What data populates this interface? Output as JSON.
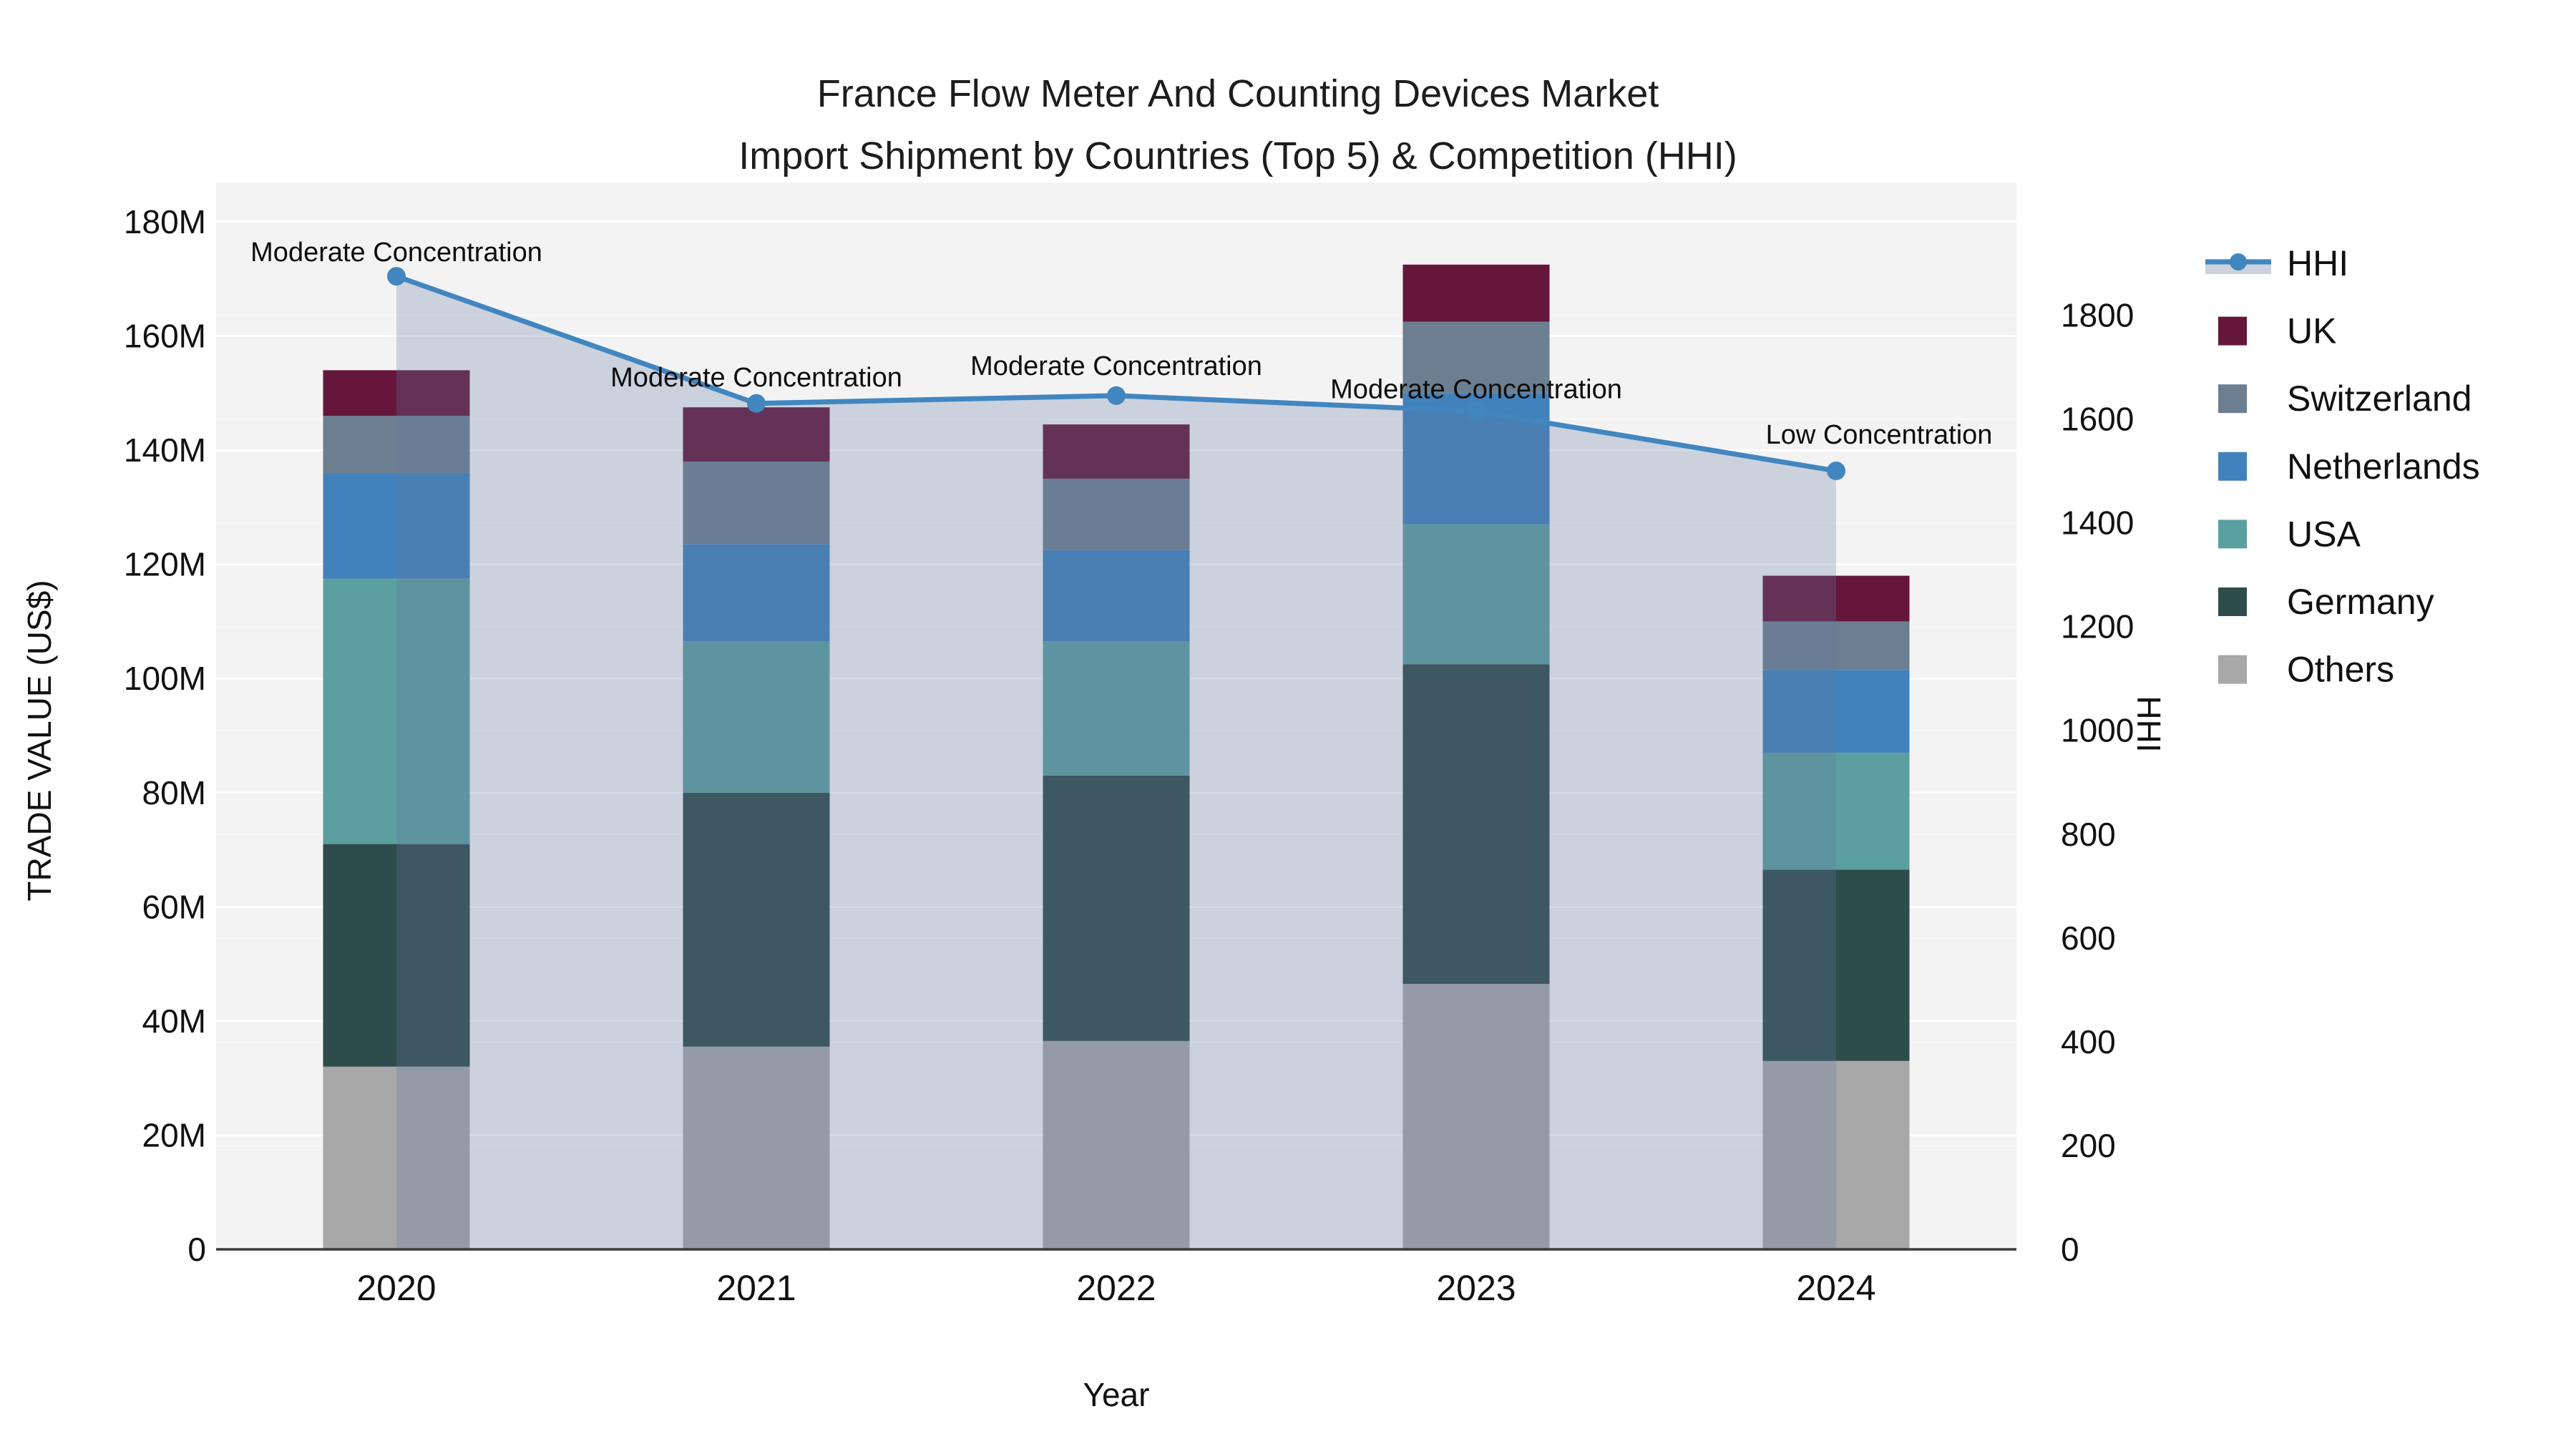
{
  "chart_data": {
    "type": "bar+line",
    "title_line1": "France Flow Meter And Counting Devices Market",
    "title_line2": "Import Shipment by Countries (Top 5) & Competition (HHI)",
    "xlabel": "Year",
    "ylabel_left": "TRADE VALUE (US$)",
    "ylabel_right": "HHI",
    "categories": [
      "2020",
      "2021",
      "2022",
      "2023",
      "2024"
    ],
    "bar_unit": "M US$",
    "series": [
      {
        "name": "Others",
        "color": "#A8A8A8",
        "values": [
          32,
          35.5,
          36.5,
          46.5,
          33
        ]
      },
      {
        "name": "Germany",
        "color": "#2E4C4A",
        "values": [
          39,
          44.5,
          46.5,
          56,
          33.5
        ]
      },
      {
        "name": "USA",
        "color": "#5C9FA0",
        "values": [
          46.5,
          26.5,
          23.5,
          24.5,
          20.5
        ]
      },
      {
        "name": "Netherlands",
        "color": "#4182BC",
        "values": [
          18.5,
          17,
          16,
          23,
          14.5
        ]
      },
      {
        "name": "Switzerland",
        "color": "#6C7F90",
        "values": [
          10,
          14.5,
          12.5,
          12.5,
          8.5
        ]
      },
      {
        "name": "UK",
        "color": "#64173B",
        "values": [
          8,
          9.5,
          9.5,
          10,
          8
        ]
      }
    ],
    "bar_totals": [
      154,
      147.5,
      144.5,
      172.5,
      118
    ],
    "hhi": {
      "name": "HHI",
      "line_color": "#4286C0",
      "fill_color": "rgba(100,122,160,0.28)",
      "legend_band_color": "#CCD3DE",
      "values": [
        1875,
        1630,
        1645,
        1615,
        1500
      ]
    },
    "annotations": [
      {
        "year": "2020",
        "label": "Moderate Concentration"
      },
      {
        "year": "2021",
        "label": "Moderate Concentration"
      },
      {
        "year": "2022",
        "label": "Moderate Concentration"
      },
      {
        "year": "2023",
        "label": "Moderate Concentration"
      },
      {
        "year": "2024",
        "label": "Low Concentration"
      }
    ],
    "y_left": {
      "range": [
        0,
        187
      ],
      "tick_values": [
        0,
        20,
        40,
        60,
        80,
        100,
        120,
        140,
        160,
        180
      ],
      "tick_labels": [
        "0",
        "20M",
        "40M",
        "60M",
        "80M",
        "100M",
        "120M",
        "140M",
        "160M",
        "180M"
      ]
    },
    "y_right": {
      "range": [
        0,
        2056
      ],
      "tick_values": [
        0,
        200,
        400,
        600,
        800,
        1000,
        1200,
        1400,
        1600,
        1800
      ],
      "tick_labels": [
        "0",
        "200",
        "400",
        "600",
        "800",
        "1000",
        "1200",
        "1400",
        "1600",
        "1800"
      ]
    },
    "legend_order": [
      "HHI",
      "UK",
      "Switzerland",
      "Netherlands",
      "USA",
      "Germany",
      "Others"
    ],
    "plot_bg_color": "#F3F3F4",
    "gridline_color": "#FFFFFF",
    "axisline_color": "#3B3B3B"
  }
}
